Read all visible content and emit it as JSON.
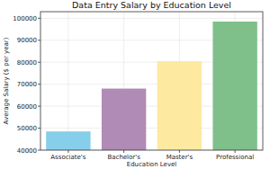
{
  "chart_data": {
    "type": "bar",
    "title": "Data Entry Salary by Education Level",
    "x_label": "Education Level",
    "y_label": "Average Salary ($ per year)",
    "categories": [
      "Associate's",
      "Bachelor's",
      "Master's",
      "Professional"
    ],
    "values": [
      48500,
      68000,
      80500,
      98500
    ],
    "colors": [
      "#87ceeb",
      "#b08bb5",
      "#fde99f",
      "#7fc08a"
    ],
    "ylim": [
      40000,
      103000
    ],
    "yticks": [
      40000,
      50000,
      60000,
      70000,
      80000,
      90000,
      100000
    ],
    "grid": true
  }
}
